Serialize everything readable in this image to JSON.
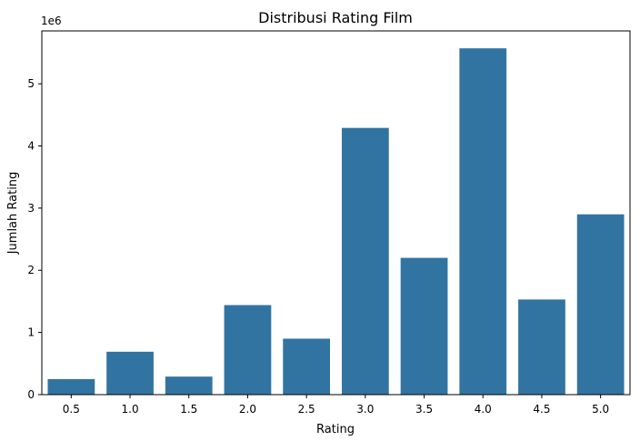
{
  "chart_data": {
    "type": "bar",
    "title": "Distribusi Rating Film",
    "xlabel": "Rating",
    "ylabel": "Jumlah Rating",
    "y_offset_text": "1e6",
    "categories": [
      "0.5",
      "1.0",
      "1.5",
      "2.0",
      "2.5",
      "3.0",
      "3.5",
      "4.0",
      "4.5",
      "5.0"
    ],
    "values": [
      250000,
      690000,
      290000,
      1440000,
      900000,
      4290000,
      2200000,
      5570000,
      1530000,
      2900000
    ],
    "y_ticks": [
      0,
      1000000,
      2000000,
      3000000,
      4000000,
      5000000
    ],
    "y_tick_labels": [
      "0",
      "1",
      "2",
      "3",
      "4",
      "5"
    ],
    "ylim": [
      0,
      5850000
    ],
    "grid": false,
    "bar_color": "#3274a1"
  }
}
